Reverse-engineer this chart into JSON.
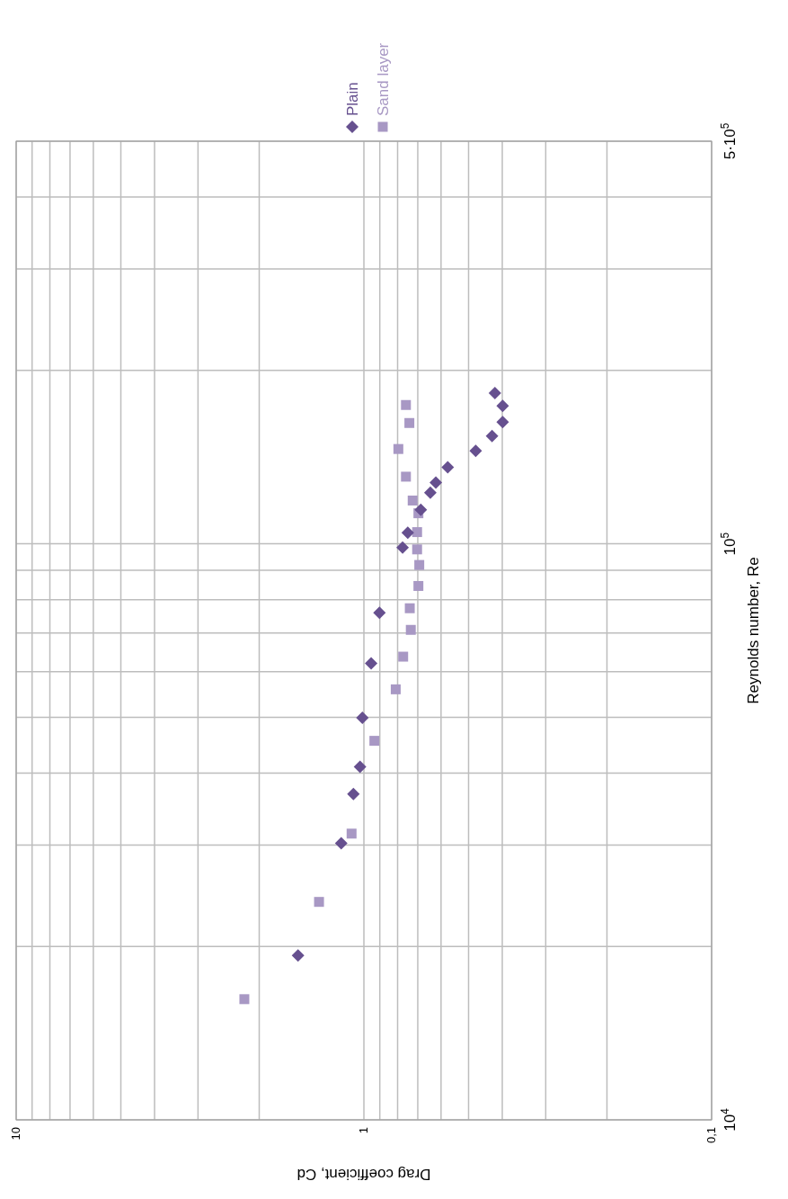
{
  "chart_data": {
    "type": "scatter",
    "xlabel": "Drag coefficient, Cd",
    "ylabel": "Reynolds number, Re",
    "log": "xy",
    "grid": true,
    "legend": "top right",
    "xlim": [
      10,
      0.1
    ],
    "xticks": [
      10,
      {
        "value": 9,
        "label": null
      },
      {
        "value": 8,
        "label": null
      },
      {
        "value": 7,
        "label": null
      },
      {
        "value": 6,
        "label": null
      },
      {
        "value": 5,
        "label": null
      },
      {
        "value": 4,
        "label": null
      },
      {
        "value": 3,
        "label": null
      },
      {
        "value": 2,
        "label": null
      },
      1,
      {
        "value": 0.9,
        "label": null
      },
      {
        "value": 0.8,
        "label": null
      },
      {
        "value": 0.7,
        "label": null
      },
      {
        "value": 0.6,
        "label": null
      },
      {
        "value": 0.5,
        "label": null
      },
      {
        "value": 0.4,
        "label": null
      },
      {
        "value": 0.3,
        "label": null
      },
      {
        "value": 0.2,
        "label": null
      },
      {
        "value": 0.1,
        "label": "0,1"
      }
    ],
    "ylim": [
      10000,
      500000
    ],
    "yticks": [
      {
        "value": 10000,
        "label": "10$^{4}$"
      },
      {
        "value": 20000,
        "label": null
      },
      {
        "value": 30000,
        "label": null
      },
      {
        "value": 40000,
        "label": null
      },
      {
        "value": 50000,
        "label": null
      },
      {
        "value": 60000,
        "label": null
      },
      {
        "value": 70000,
        "label": null
      },
      {
        "value": 80000,
        "label": null
      },
      {
        "value": 90000,
        "label": null
      },
      {
        "value": 100000,
        "label": "10$^{5}$"
      },
      {
        "value": 200000,
        "label": null
      },
      {
        "value": 300000,
        "label": null
      },
      {
        "value": 400000,
        "label": null
      },
      {
        "value": 500000,
        "label": "5·10$^{5}$"
      }
    ],
    "series": [
      {
        "name": "Plain",
        "color": "#66508f",
        "marker": "diamond",
        "x": [
          0.42,
          0.399,
          0.399,
          0.428,
          0.477,
          0.574,
          0.621,
          0.644,
          0.686,
          0.748,
          0.774,
          0.902,
          0.953,
          1.01,
          1.026,
          1.072,
          1.162,
          1.547
        ],
        "values": [
          182700,
          173600,
          162700,
          153900,
          145000,
          135800,
          127800,
          122700,
          114600,
          104500,
          98500,
          75900,
          62000,
          49900,
          41000,
          36800,
          30200,
          19300
        ]
      },
      {
        "name": "Sand layer",
        "color": "#a898c4",
        "marker": "square",
        "x": [
          0.757,
          0.74,
          0.796,
          0.757,
          0.724,
          0.697,
          0.703,
          0.703,
          0.693,
          0.697,
          0.738,
          0.733,
          0.771,
          0.81,
          0.933,
          1.085,
          1.346,
          2.207
        ],
        "values": [
          174200,
          162100,
          146100,
          130800,
          118900,
          113000,
          104800,
          97800,
          91900,
          84500,
          77300,
          70900,
          63700,
          55900,
          45500,
          31400,
          23900,
          16200
        ]
      }
    ]
  }
}
